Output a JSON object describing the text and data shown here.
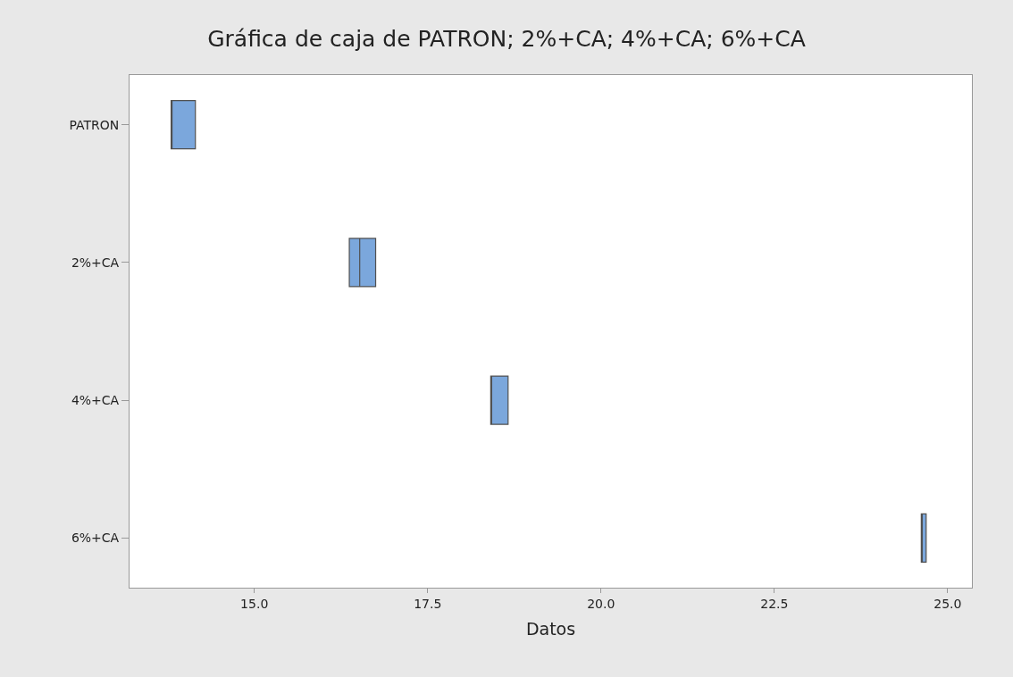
{
  "chart_data": {
    "type": "box",
    "orientation": "horizontal",
    "title": "Gráfica de caja de PATRON; 2%+CA; 4%+CA; 6%+CA",
    "xlabel": "Datos",
    "categories": [
      "PATRON",
      "2%+CA",
      "4%+CA",
      "6%+CA"
    ],
    "boxes": [
      {
        "low": 13.8,
        "q1": 13.8,
        "median": 13.8,
        "q3": 14.15,
        "high": 14.15
      },
      {
        "low": 16.37,
        "q1": 16.37,
        "median": 16.52,
        "q3": 16.75,
        "high": 16.75
      },
      {
        "low": 18.41,
        "q1": 18.41,
        "median": 18.41,
        "q3": 18.66,
        "high": 18.66
      },
      {
        "low": 24.62,
        "q1": 24.62,
        "median": 24.62,
        "q3": 24.69,
        "high": 24.69
      }
    ],
    "color": "#7ba7dc",
    "xlim": [
      13.2,
      25.35
    ],
    "xticks": [
      {
        "value": 15,
        "label": "15.0"
      },
      {
        "value": 17.5,
        "label": "17.5"
      },
      {
        "value": 20,
        "label": "20.0"
      },
      {
        "value": 22.5,
        "label": "22.5"
      },
      {
        "value": 25,
        "label": "25.0"
      }
    ],
    "grid": false
  }
}
